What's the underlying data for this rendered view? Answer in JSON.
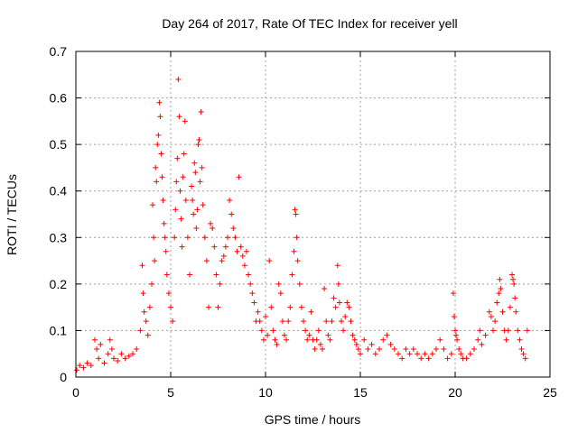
{
  "chart_data": {
    "type": "scatter",
    "title": "Day 264 of 2017, Rate Of TEC Index for receiver yell",
    "xlabel": "GPS time / hours",
    "ylabel": "ROTI / TECUs",
    "xlim": [
      0,
      25
    ],
    "ylim": [
      0,
      0.7
    ],
    "xticks": [
      0,
      5,
      10,
      15,
      20,
      25
    ],
    "yticks": [
      0,
      0.1,
      0.2,
      0.3,
      0.4,
      0.5,
      0.6,
      0.7
    ],
    "xtick_labels": [
      "0",
      "5",
      "10",
      "15",
      "20",
      "25"
    ],
    "ytick_labels": [
      "0",
      "0.1",
      "0.2",
      "0.3",
      "0.4",
      "0.5",
      "0.6",
      "0.7"
    ],
    "grid": true,
    "marker": "+",
    "color": "#ff0000",
    "series": [
      {
        "name": "ROTI",
        "points": [
          [
            0.05,
            0.015
          ],
          [
            0.2,
            0.025
          ],
          [
            0.4,
            0.02
          ],
          [
            0.6,
            0.03
          ],
          [
            0.8,
            0.025
          ],
          [
            1.0,
            0.08
          ],
          [
            1.1,
            0.06
          ],
          [
            1.2,
            0.04
          ],
          [
            1.3,
            0.07
          ],
          [
            1.5,
            0.03
          ],
          [
            1.7,
            0.05
          ],
          [
            1.8,
            0.08
          ],
          [
            1.9,
            0.06
          ],
          [
            2.0,
            0.04
          ],
          [
            2.2,
            0.035
          ],
          [
            2.4,
            0.05
          ],
          [
            2.6,
            0.04
          ],
          [
            2.8,
            0.045
          ],
          [
            3.0,
            0.05
          ],
          [
            3.2,
            0.06
          ],
          [
            3.4,
            0.1
          ],
          [
            3.5,
            0.24
          ],
          [
            3.55,
            0.18
          ],
          [
            3.6,
            0.14
          ],
          [
            3.7,
            0.12
          ],
          [
            3.8,
            0.09
          ],
          [
            3.9,
            0.15
          ],
          [
            4.0,
            0.2
          ],
          [
            4.05,
            0.37
          ],
          [
            4.1,
            0.3
          ],
          [
            4.15,
            0.25
          ],
          [
            4.2,
            0.45
          ],
          [
            4.25,
            0.42
          ],
          [
            4.3,
            0.5
          ],
          [
            4.35,
            0.52
          ],
          [
            4.4,
            0.59
          ],
          [
            4.45,
            0.56
          ],
          [
            4.5,
            0.48
          ],
          [
            4.55,
            0.43
          ],
          [
            4.6,
            0.38
          ],
          [
            4.65,
            0.33
          ],
          [
            4.7,
            0.3
          ],
          [
            4.75,
            0.27
          ],
          [
            4.8,
            0.22
          ],
          [
            4.9,
            0.18
          ],
          [
            5.0,
            0.15
          ],
          [
            5.1,
            0.12
          ],
          [
            5.2,
            0.3
          ],
          [
            5.25,
            0.36
          ],
          [
            5.3,
            0.42
          ],
          [
            5.35,
            0.47
          ],
          [
            5.4,
            0.64
          ],
          [
            5.45,
            0.56
          ],
          [
            5.5,
            0.4
          ],
          [
            5.55,
            0.34
          ],
          [
            5.6,
            0.28
          ],
          [
            5.65,
            0.43
          ],
          [
            5.7,
            0.48
          ],
          [
            5.75,
            0.55
          ],
          [
            5.8,
            0.38
          ],
          [
            5.9,
            0.3
          ],
          [
            6.0,
            0.22
          ],
          [
            6.1,
            0.41
          ],
          [
            6.15,
            0.38
          ],
          [
            6.2,
            0.35
          ],
          [
            6.25,
            0.46
          ],
          [
            6.3,
            0.44
          ],
          [
            6.35,
            0.32
          ],
          [
            6.4,
            0.36
          ],
          [
            6.45,
            0.5
          ],
          [
            6.5,
            0.51
          ],
          [
            6.55,
            0.42
          ],
          [
            6.6,
            0.57
          ],
          [
            6.65,
            0.45
          ],
          [
            6.7,
            0.37
          ],
          [
            6.8,
            0.3
          ],
          [
            6.9,
            0.25
          ],
          [
            7.0,
            0.15
          ],
          [
            7.1,
            0.33
          ],
          [
            7.2,
            0.32
          ],
          [
            7.3,
            0.28
          ],
          [
            7.4,
            0.22
          ],
          [
            7.5,
            0.15
          ],
          [
            7.6,
            0.2
          ],
          [
            7.7,
            0.25
          ],
          [
            7.8,
            0.26
          ],
          [
            7.9,
            0.28
          ],
          [
            8.0,
            0.3
          ],
          [
            8.1,
            0.38
          ],
          [
            8.2,
            0.35
          ],
          [
            8.3,
            0.32
          ],
          [
            8.4,
            0.3
          ],
          [
            8.5,
            0.27
          ],
          [
            8.6,
            0.43
          ],
          [
            8.7,
            0.28
          ],
          [
            8.8,
            0.26
          ],
          [
            8.9,
            0.24
          ],
          [
            9.0,
            0.27
          ],
          [
            9.1,
            0.22
          ],
          [
            9.2,
            0.2
          ],
          [
            9.3,
            0.18
          ],
          [
            9.4,
            0.16
          ],
          [
            9.5,
            0.12
          ],
          [
            9.6,
            0.14
          ],
          [
            9.7,
            0.12
          ],
          [
            9.8,
            0.1
          ],
          [
            9.9,
            0.08
          ],
          [
            10.0,
            0.13
          ],
          [
            10.1,
            0.09
          ],
          [
            10.2,
            0.25
          ],
          [
            10.3,
            0.15
          ],
          [
            10.4,
            0.1
          ],
          [
            10.5,
            0.08
          ],
          [
            10.6,
            0.07
          ],
          [
            10.7,
            0.2
          ],
          [
            10.8,
            0.18
          ],
          [
            10.9,
            0.12
          ],
          [
            11.0,
            0.09
          ],
          [
            11.1,
            0.08
          ],
          [
            11.2,
            0.12
          ],
          [
            11.3,
            0.15
          ],
          [
            11.4,
            0.22
          ],
          [
            11.5,
            0.27
          ],
          [
            11.55,
            0.36
          ],
          [
            11.6,
            0.35
          ],
          [
            11.65,
            0.3
          ],
          [
            11.7,
            0.25
          ],
          [
            11.8,
            0.2
          ],
          [
            11.9,
            0.15
          ],
          [
            12.0,
            0.12
          ],
          [
            12.1,
            0.1
          ],
          [
            12.2,
            0.08
          ],
          [
            12.3,
            0.09
          ],
          [
            12.4,
            0.14
          ],
          [
            12.5,
            0.08
          ],
          [
            12.6,
            0.06
          ],
          [
            12.7,
            0.08
          ],
          [
            12.8,
            0.1
          ],
          [
            12.9,
            0.07
          ],
          [
            13.0,
            0.06
          ],
          [
            13.1,
            0.19
          ],
          [
            13.2,
            0.12
          ],
          [
            13.3,
            0.09
          ],
          [
            13.4,
            0.08
          ],
          [
            13.5,
            0.12
          ],
          [
            13.6,
            0.17
          ],
          [
            13.7,
            0.15
          ],
          [
            13.8,
            0.24
          ],
          [
            13.85,
            0.2
          ],
          [
            13.9,
            0.16
          ],
          [
            14.0,
            0.12
          ],
          [
            14.1,
            0.1
          ],
          [
            14.2,
            0.13
          ],
          [
            14.3,
            0.16
          ],
          [
            14.4,
            0.15
          ],
          [
            14.5,
            0.12
          ],
          [
            14.6,
            0.09
          ],
          [
            14.7,
            0.08
          ],
          [
            14.8,
            0.07
          ],
          [
            14.9,
            0.06
          ],
          [
            15.0,
            0.05
          ],
          [
            15.2,
            0.08
          ],
          [
            15.4,
            0.06
          ],
          [
            15.6,
            0.07
          ],
          [
            15.8,
            0.05
          ],
          [
            16.0,
            0.06
          ],
          [
            16.2,
            0.08
          ],
          [
            16.4,
            0.09
          ],
          [
            16.6,
            0.07
          ],
          [
            16.8,
            0.06
          ],
          [
            17.0,
            0.05
          ],
          [
            17.2,
            0.04
          ],
          [
            17.4,
            0.06
          ],
          [
            17.6,
            0.05
          ],
          [
            17.8,
            0.06
          ],
          [
            18.0,
            0.05
          ],
          [
            18.2,
            0.04
          ],
          [
            18.4,
            0.05
          ],
          [
            18.6,
            0.04
          ],
          [
            18.8,
            0.05
          ],
          [
            19.0,
            0.06
          ],
          [
            19.2,
            0.08
          ],
          [
            19.4,
            0.06
          ],
          [
            19.6,
            0.04
          ],
          [
            19.8,
            0.05
          ],
          [
            19.9,
            0.18
          ],
          [
            19.95,
            0.13
          ],
          [
            20.0,
            0.1
          ],
          [
            20.05,
            0.09
          ],
          [
            20.1,
            0.08
          ],
          [
            20.2,
            0.06
          ],
          [
            20.3,
            0.05
          ],
          [
            20.4,
            0.04
          ],
          [
            20.6,
            0.04
          ],
          [
            20.8,
            0.05
          ],
          [
            21.0,
            0.06
          ],
          [
            21.2,
            0.08
          ],
          [
            21.3,
            0.1
          ],
          [
            21.4,
            0.07
          ],
          [
            21.6,
            0.09
          ],
          [
            21.8,
            0.14
          ],
          [
            21.9,
            0.13
          ],
          [
            22.0,
            0.1
          ],
          [
            22.1,
            0.12
          ],
          [
            22.2,
            0.16
          ],
          [
            22.3,
            0.18
          ],
          [
            22.35,
            0.21
          ],
          [
            22.4,
            0.19
          ],
          [
            22.5,
            0.14
          ],
          [
            22.6,
            0.1
          ],
          [
            22.7,
            0.08
          ],
          [
            22.8,
            0.1
          ],
          [
            22.9,
            0.15
          ],
          [
            23.0,
            0.22
          ],
          [
            23.05,
            0.21
          ],
          [
            23.1,
            0.2
          ],
          [
            23.15,
            0.17
          ],
          [
            23.2,
            0.14
          ],
          [
            23.3,
            0.1
          ],
          [
            23.4,
            0.08
          ],
          [
            23.5,
            0.06
          ],
          [
            23.6,
            0.05
          ],
          [
            23.7,
            0.04
          ],
          [
            23.8,
            0.1
          ]
        ]
      }
    ]
  }
}
